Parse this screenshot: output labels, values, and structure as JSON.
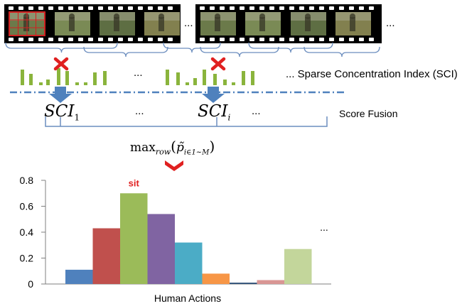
{
  "filmstrip": {
    "continuation": "...",
    "frame_colors": [
      "#6b7a4a",
      "#7a8a55",
      "#5e6e43",
      "#82804f",
      "#6f7e4c"
    ],
    "highlight_color": "#d22020"
  },
  "sci_row": {
    "label": "... Sparse Concentration Index (SCI)",
    "gap_ellipsis": "...",
    "bar_color": "#8ab43c",
    "cross_color": "#e02020",
    "arrow_color": "#4f81bd",
    "dash_color": "#4f81bd"
  },
  "sci_terms": {
    "first": {
      "base": "SCI",
      "sub": "1"
    },
    "second": {
      "base": "SCI",
      "sub": "i"
    },
    "ellipsis_mid": "...",
    "ellipsis_end": "...",
    "score_fusion_label": "Score Fusion"
  },
  "formula": {
    "func": "max",
    "func_sub": "row",
    "open": "(",
    "p": "p̃",
    "p_sub": "i∈1~M",
    "close": ")",
    "chevron_color": "#e02020"
  },
  "chart_data": {
    "type": "bar",
    "xlabel": "Human Actions",
    "ylim": [
      0,
      0.8
    ],
    "yticks": [
      "0",
      "0.2",
      "0.4",
      "0.6",
      "0.8"
    ],
    "values": [
      0.11,
      0.43,
      0.7,
      0.54,
      0.32,
      0.08,
      0.01,
      0.03,
      0.27
    ],
    "colors": [
      "#4f81bd",
      "#c0504d",
      "#9bbb59",
      "#8064a2",
      "#4bacc6",
      "#f79646",
      "#2c4d75",
      "#d99694",
      "#c3d69b"
    ],
    "annotation": {
      "text": "sit",
      "bar_index": 2,
      "color": "#e02020"
    },
    "continuation": "..."
  }
}
